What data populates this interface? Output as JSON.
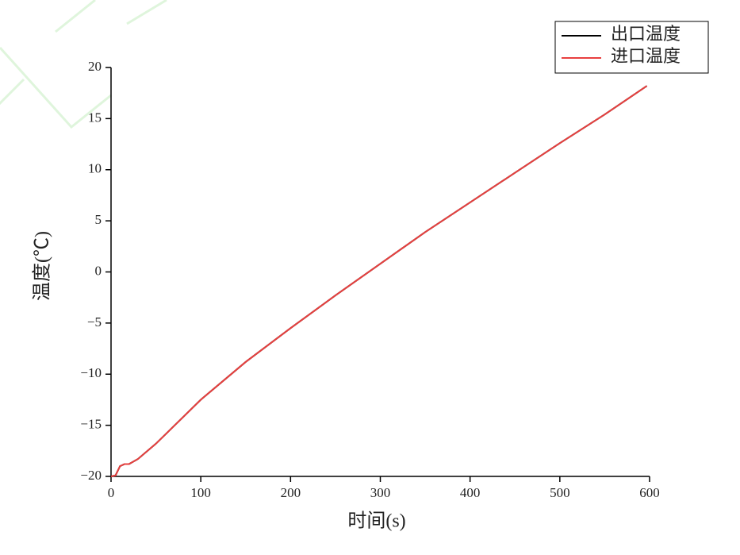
{
  "chart_data": {
    "type": "line",
    "x_label": "时间(s)",
    "y_label": "温度(℃)",
    "x": [
      0,
      5,
      10,
      15,
      20,
      30,
      50,
      100,
      150,
      200,
      250,
      300,
      350,
      400,
      450,
      500,
      550,
      597
    ],
    "series": [
      {
        "name": "出口温度",
        "color": "#000000",
        "values": [
          -20,
          -19.9,
          -19.0,
          -18.8,
          -18.8,
          -18.3,
          -16.8,
          -12.5,
          -8.8,
          -5.5,
          -2.3,
          0.8,
          3.9,
          6.8,
          9.7,
          12.6,
          15.4,
          18.2
        ]
      },
      {
        "name": "进口温度",
        "color": "#e8403f",
        "values": [
          -20,
          -19.9,
          -19.0,
          -18.8,
          -18.8,
          -18.3,
          -16.8,
          -12.5,
          -8.8,
          -5.5,
          -2.3,
          0.8,
          3.9,
          6.8,
          9.7,
          12.6,
          15.4,
          18.2
        ]
      }
    ],
    "xlim": [
      0,
      600
    ],
    "xticks": [
      0,
      100,
      200,
      300,
      400,
      500,
      600
    ],
    "ylim": [
      -20,
      20
    ],
    "yticks": [
      {
        "value": -20,
        "label": "−20"
      },
      {
        "value": -15,
        "label": "−15"
      },
      {
        "value": -10,
        "label": "−10"
      },
      {
        "value": -5,
        "label": "−5"
      },
      0,
      5,
      10,
      15,
      20
    ],
    "legend": "top-right"
  }
}
